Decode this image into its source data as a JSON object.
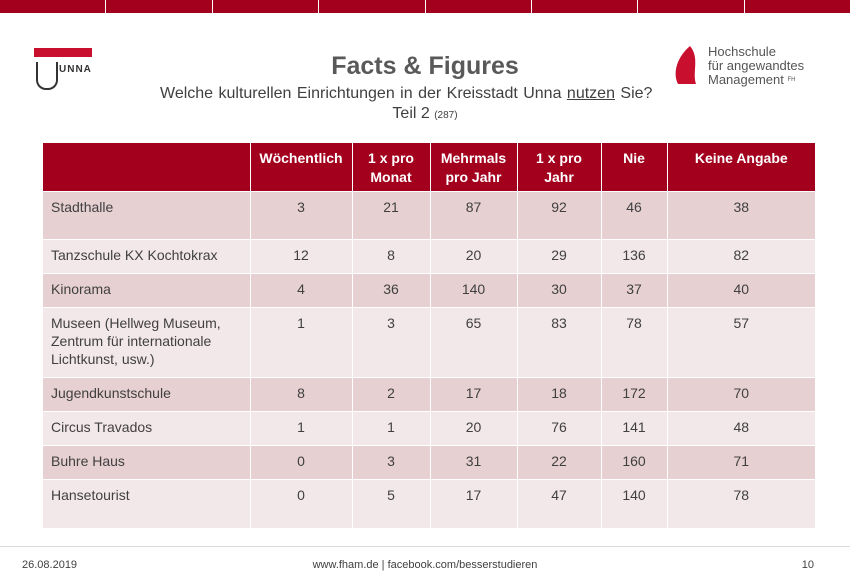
{
  "header": {
    "title": "Facts & Figures",
    "subtitle_pre": "Welche kulturellen  Einrichtungen  in der Kreisstadt Unna ",
    "subtitle_underlined": "nutzen",
    "subtitle_post": " Sie?",
    "part_label": "Teil 2 ",
    "part_count": "(287)"
  },
  "logos": {
    "unna_text": "UNNA",
    "fham_line1": "Hochschule",
    "fham_line2": "für angewandtes",
    "fham_line3": "Management",
    "fham_suffix": "FH"
  },
  "table": {
    "columns": [
      "",
      "Wöchentlich",
      "1 x pro\nMonat",
      "Mehrmals\npro Jahr",
      "1 x pro\nJahr",
      "Nie",
      "Keine Angabe"
    ],
    "rows": [
      {
        "label": "Stadthalle",
        "values": [
          "3",
          "21",
          "87",
          "92",
          "46",
          "38"
        ]
      },
      {
        "label": "Tanzschule KX Kochtokrax",
        "values": [
          "12",
          "8",
          "20",
          "29",
          "136",
          "82"
        ]
      },
      {
        "label": "Kinorama",
        "values": [
          "4",
          "36",
          "140",
          "30",
          "37",
          "40"
        ]
      },
      {
        "label": "Museen (Hellweg Museum, Zentrum für internationale Lichtkunst, usw.)",
        "values": [
          "1",
          "3",
          "65",
          "83",
          "78",
          "57"
        ]
      },
      {
        "label": "Jugendkunstschule",
        "values": [
          "8",
          "2",
          "17",
          "18",
          "172",
          "70"
        ]
      },
      {
        "label": "Circus Travados",
        "values": [
          "1",
          "1",
          "20",
          "76",
          "141",
          "48"
        ]
      },
      {
        "label": "Buhre Haus",
        "values": [
          "0",
          "3",
          "31",
          "22",
          "160",
          "71"
        ]
      },
      {
        "label": "Hansetourist",
        "values": [
          "0",
          "5",
          "17",
          "47",
          "140",
          "78"
        ]
      }
    ]
  },
  "footer": {
    "date": "26.08.2019",
    "links": "www.fham.de   |  facebook.com/besserstudieren",
    "page": "10"
  },
  "colors": {
    "accent": "#a3001e",
    "row_dark": "#e7d0d2",
    "row_light": "#f3e8e9"
  }
}
